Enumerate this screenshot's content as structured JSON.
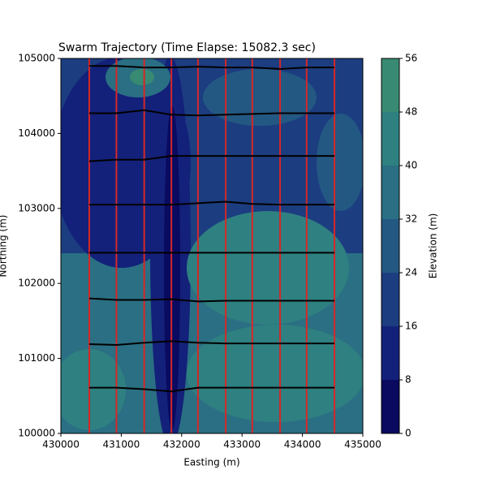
{
  "chart_data": {
    "type": "contour",
    "title": "Swarm Trajectory (Time Elapse: 15082.3 sec)",
    "x_label": "Easting (m)",
    "y_label": "Northing (m)",
    "colorbar_label": "Elevation (m)",
    "xlim": [
      430000,
      435000
    ],
    "ylim": [
      100000,
      105000
    ],
    "xticks": [
      430000,
      431000,
      432000,
      433000,
      434000,
      435000
    ],
    "yticks": [
      100000,
      101000,
      102000,
      103000,
      104000,
      105000
    ],
    "levels": [
      0,
      8,
      16,
      24,
      32,
      40,
      48,
      56
    ],
    "level_colors": [
      "#0a0a60",
      "#13217a",
      "#1c3d80",
      "#235882",
      "#2a6f83",
      "#2f8081",
      "#388a72"
    ],
    "x": [
      430470,
      430920,
      431380,
      431830,
      432270,
      432730,
      433170,
      433630,
      434070,
      434530
    ],
    "vertical_color": "#d62728",
    "line_color": "#000000",
    "lines": [
      {
        "y": [
          104900,
          104900,
          104880,
          104880,
          104890,
          104880,
          104880,
          104860,
          104880,
          104880
        ]
      },
      {
        "y": [
          104270,
          104270,
          104310,
          104250,
          104240,
          104250,
          104260,
          104270,
          104270,
          104270
        ]
      },
      {
        "y": [
          103630,
          103650,
          103650,
          103700,
          103700,
          103700,
          103700,
          103700,
          103700,
          103700
        ]
      },
      {
        "y": [
          103050,
          103050,
          103050,
          103050,
          103070,
          103090,
          103060,
          103050,
          103050,
          103050
        ]
      },
      {
        "y": [
          102410,
          102410,
          102410,
          102410,
          102410,
          102410,
          102410,
          102410,
          102410,
          102410
        ]
      },
      {
        "y": [
          101800,
          101780,
          101780,
          101790,
          101760,
          101770,
          101770,
          101770,
          101770,
          101770
        ]
      },
      {
        "y": [
          101190,
          101180,
          101210,
          101230,
          101210,
          101200,
          101200,
          101200,
          101200,
          101200
        ]
      },
      {
        "y": [
          100610,
          100610,
          100590,
          100560,
          100610,
          100610,
          100610,
          100610,
          100610,
          100610
        ]
      }
    ]
  }
}
